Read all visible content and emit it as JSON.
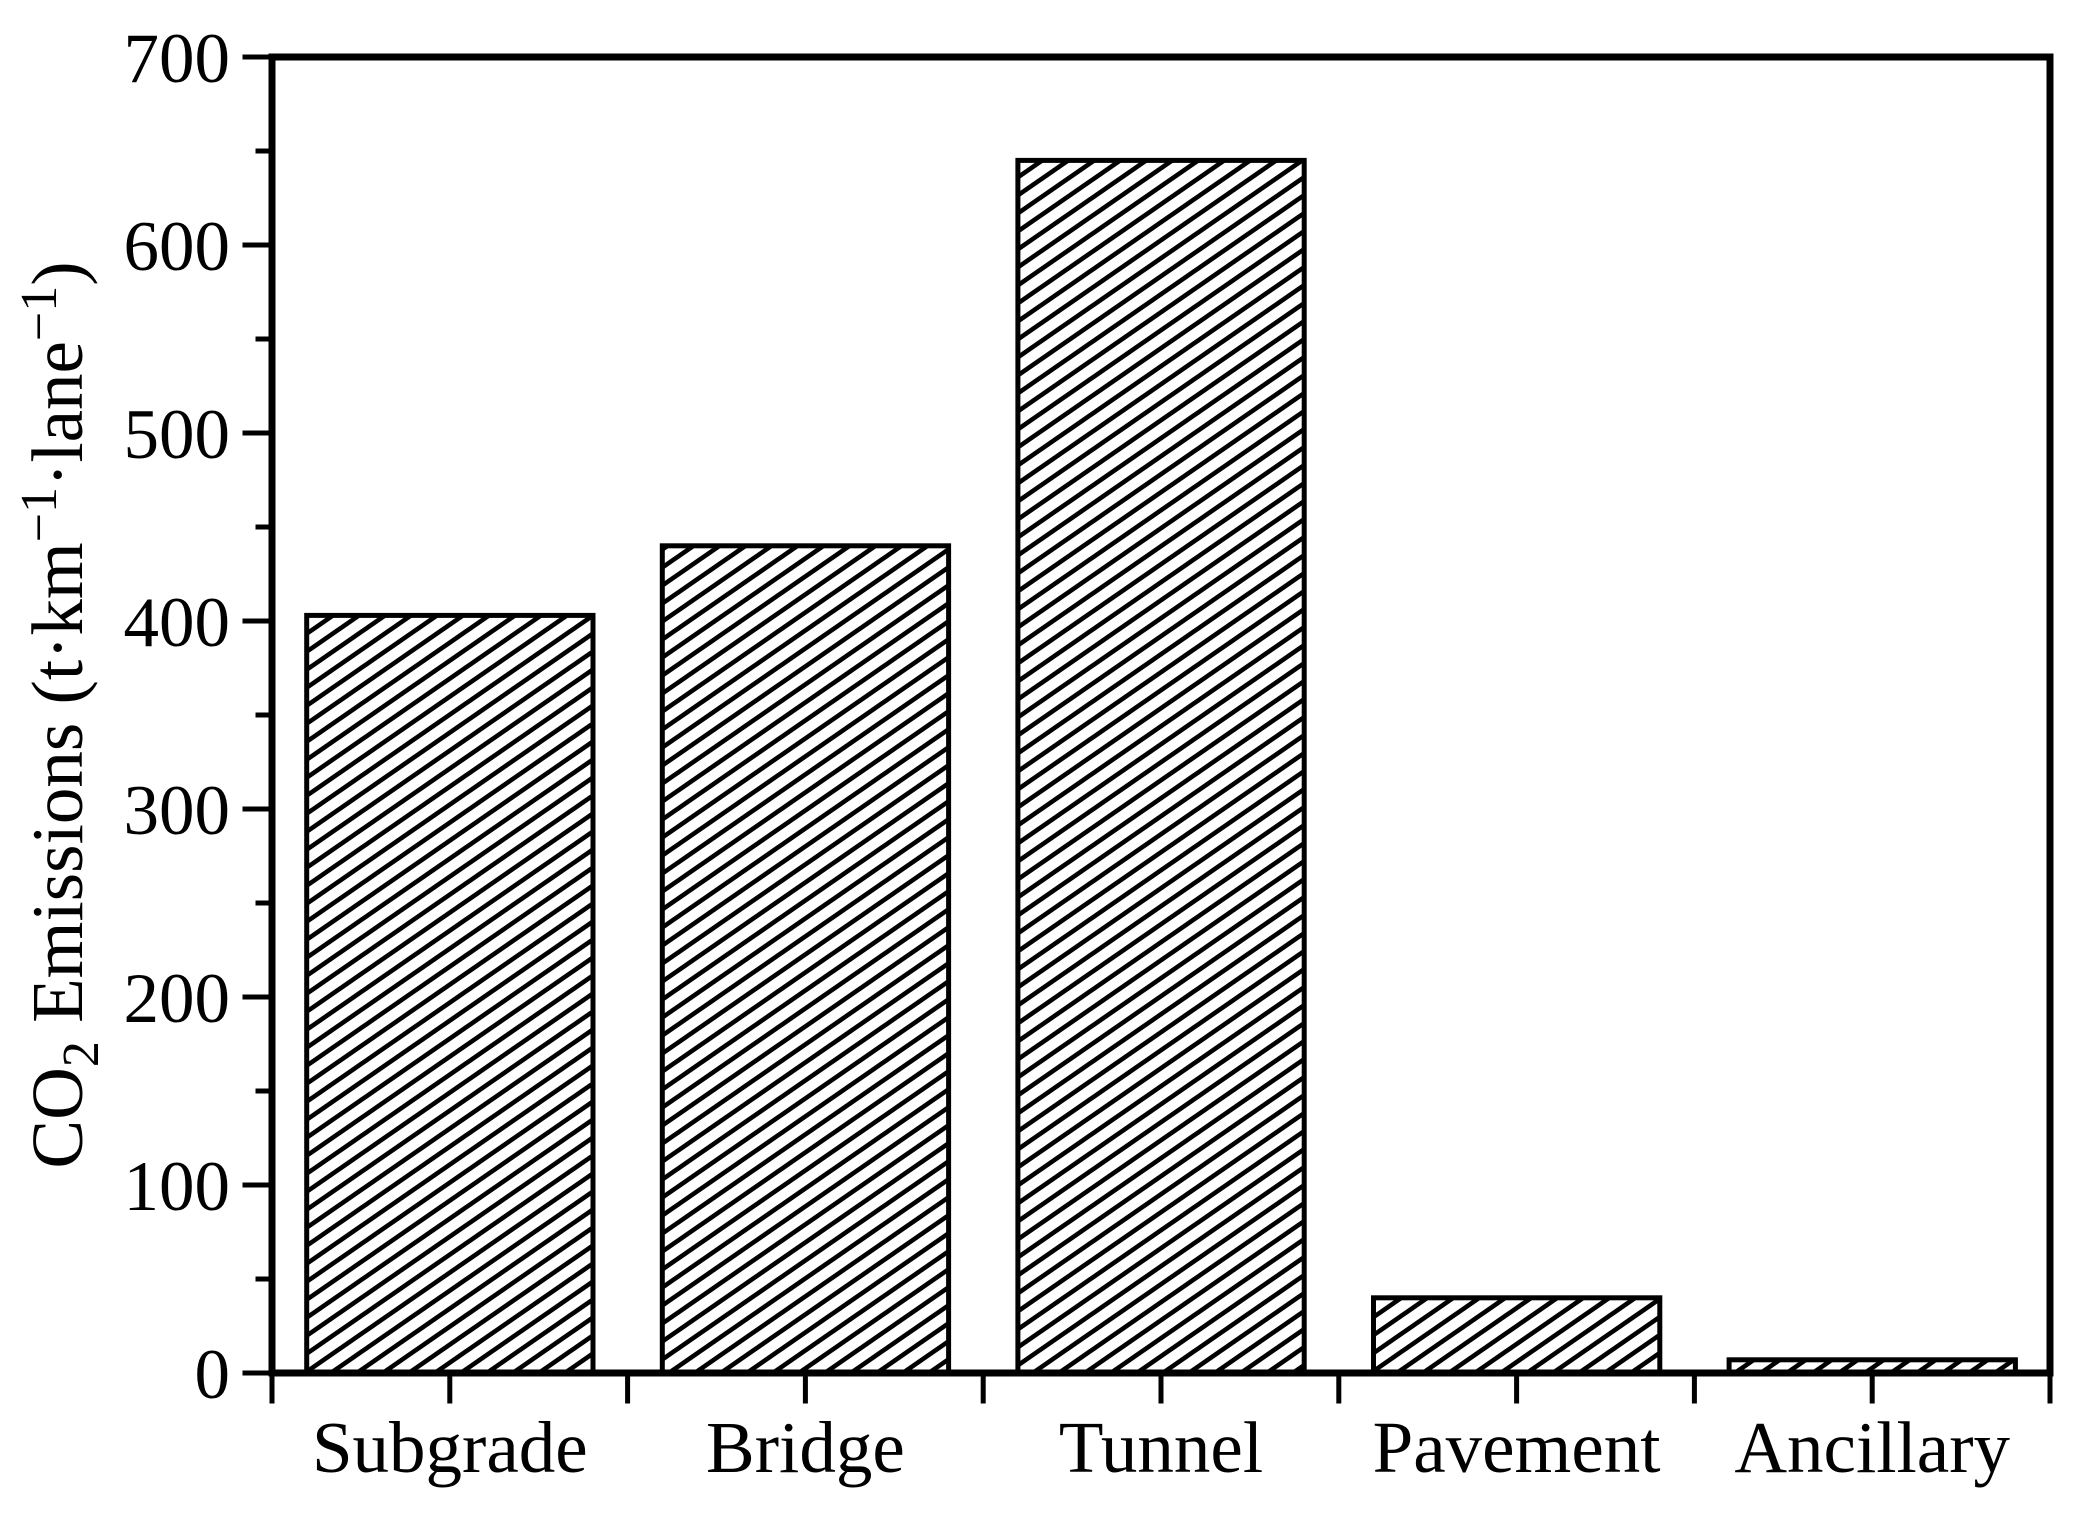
{
  "chart_data": {
    "type": "bar",
    "categories": [
      "Subgrade",
      "Bridge",
      "Tunnel",
      "Pavement",
      "Ancillary"
    ],
    "values": [
      403,
      440,
      645,
      40,
      7
    ],
    "title": "",
    "xlabel": "",
    "ylabel": "CO₂ Emissions (t·km⁻¹·lane⁻¹)",
    "ylabel_parts": [
      {
        "text": "CO",
        "script": "normal"
      },
      {
        "text": "2",
        "script": "sub"
      },
      {
        "text": " Emissions (t·km",
        "script": "normal"
      },
      {
        "text": "−1",
        "script": "sup"
      },
      {
        "text": "·lane",
        "script": "normal"
      },
      {
        "text": "−1",
        "script": "sup"
      },
      {
        "text": ")",
        "script": "normal"
      }
    ],
    "ylim": [
      0,
      700
    ],
    "ytick_major": [
      0,
      100,
      200,
      300,
      400,
      500,
      600,
      700
    ],
    "ytick_labels": [
      "0",
      "100",
      "200",
      "300",
      "400",
      "500",
      "600",
      "700"
    ],
    "ytick_minor_step": 50,
    "grid": false,
    "legend": null,
    "axis_color": "#000000",
    "background_color": "#ffffff",
    "bar_style": {
      "fill": "diagonal-hatch",
      "hatch_direction": "forward-slash",
      "outline_color": "#000000",
      "fill_background": "#ffffff"
    }
  }
}
